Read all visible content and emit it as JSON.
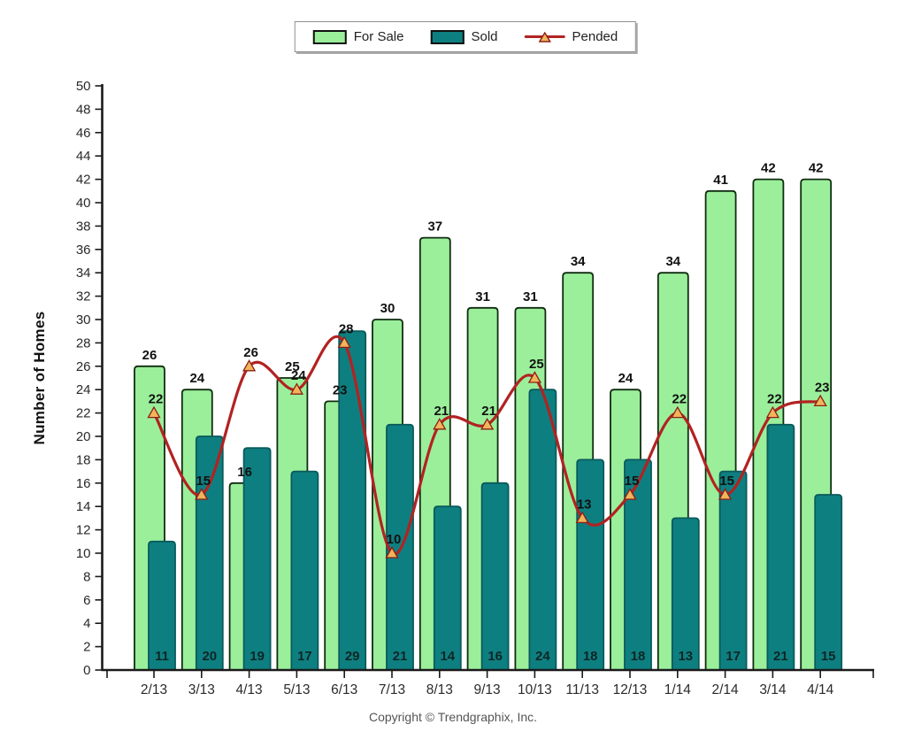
{
  "colors": {
    "for_sale_fill": "#9bef9b",
    "for_sale_border": "#102c10",
    "sold_fill": "#0e7f80",
    "sold_border": "#0a5a5b",
    "pended_line": "#b22222",
    "pended_marker_fill": "#f2b45a",
    "pended_marker_border": "#8b2015",
    "axis": "#1a1a1a",
    "tick_text": "#2a2a2a",
    "value_text": "#111111",
    "sold_value_text": "#0d2626",
    "footer_text": "#555555"
  },
  "chart_data": {
    "type": "bar",
    "categories": [
      "2/13",
      "3/13",
      "4/13",
      "5/13",
      "6/13",
      "7/13",
      "8/13",
      "9/13",
      "10/13",
      "11/13",
      "12/13",
      "1/14",
      "2/14",
      "3/14",
      "4/14"
    ],
    "series": [
      {
        "name": "For Sale",
        "type": "bar",
        "values": [
          26,
          24,
          16,
          25,
          23,
          30,
          37,
          31,
          31,
          34,
          24,
          34,
          41,
          42,
          42
        ],
        "color": "#9bef9b"
      },
      {
        "name": "Sold",
        "type": "bar",
        "values": [
          11,
          20,
          19,
          17,
          29,
          21,
          14,
          16,
          24,
          18,
          18,
          13,
          17,
          21,
          15
        ],
        "color": "#0e7f80"
      },
      {
        "name": "Pended",
        "type": "line",
        "values": [
          22,
          15,
          26,
          24,
          28,
          10,
          21,
          21,
          25,
          13,
          15,
          22,
          15,
          22,
          23
        ],
        "color": "#b22222",
        "marker": "triangle",
        "marker_color": "#f2b45a"
      }
    ],
    "title": "",
    "xlabel": "",
    "ylabel": "Number of Homes",
    "ylim": [
      0,
      50
    ],
    "y_tick_step": 2,
    "y_ticks": [
      0,
      2,
      4,
      6,
      8,
      10,
      12,
      14,
      16,
      18,
      20,
      22,
      24,
      26,
      28,
      30,
      32,
      34,
      36,
      38,
      40,
      42,
      44,
      46,
      48,
      50
    ],
    "grid": false,
    "legend_position": "top",
    "footer": "Copyright © Trendgraphix, Inc."
  }
}
